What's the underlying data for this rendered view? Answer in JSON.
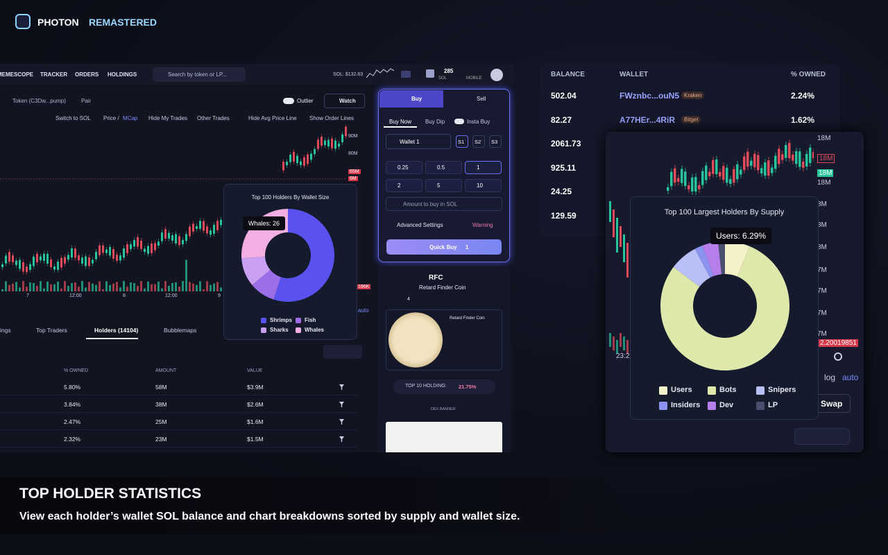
{
  "brand": {
    "name": "PHOTON",
    "accent": "REMASTERED"
  },
  "nav": {
    "items": [
      "MEMESCOPE",
      "TRACKER",
      "ORDERS",
      "HOLDINGS"
    ],
    "search": "Search by token or LP...",
    "sol_price": "SOL: $132.63",
    "balance": "285",
    "balance_unit": "SOL",
    "mobile": "MOBILE"
  },
  "token_bar": {
    "token": "Token (C3Dw...pump)",
    "pair": "Pair",
    "outlier": "Outlier",
    "watch": "Watch"
  },
  "toolbar": {
    "items": [
      "Switch to SOL",
      "Price /",
      "MCap",
      "Hide My Trades",
      "Other Trades",
      "Hide Avg Price Line",
      "Show Order Lines"
    ]
  },
  "price_chart": {
    "y_labels": [
      "90M",
      "80M",
      "65M",
      "6M"
    ],
    "low_label": "196K",
    "x_labels": [
      "7",
      "12:00",
      "8",
      "12:00",
      "9"
    ],
    "auto": "auto"
  },
  "chart_data": [
    {
      "type": "donut",
      "title": "Top 100 Holders By Wallet Size",
      "categories": [
        "Shrimps",
        "Fish",
        "Sharks",
        "Whales"
      ],
      "values": [
        55,
        9,
        10,
        26
      ],
      "value_labels": [
        null,
        null,
        null,
        "Whales: 26"
      ],
      "colors": [
        "#5a52ee",
        "#9c6ee8",
        "#c9a0f2",
        "#f3aee2"
      ]
    },
    {
      "type": "donut",
      "title": "Top 100 Largest Holders By Supply",
      "categories": [
        "Users",
        "Bots",
        "Snipers",
        "Insiders",
        "Dev",
        "LP"
      ],
      "values": [
        6.29,
        79,
        7,
        2,
        4,
        1.71
      ],
      "value_labels": [
        "Users: 6.29%",
        null,
        null,
        null,
        null,
        null
      ],
      "colors": [
        "#f4f2c8",
        "#dfe8ab",
        "#b9c0f5",
        "#8b93f0",
        "#b57ee8",
        "#4a4f6e"
      ]
    }
  ],
  "tabs": [
    "ings",
    "Top Traders",
    "Holders (14104)",
    "Bubblemaps"
  ],
  "holders_table": {
    "columns": [
      "% OWNED",
      "AMOUNT",
      "VALUE"
    ],
    "rows": [
      [
        "5.80%",
        "58M",
        "$3.9M"
      ],
      [
        "3.84%",
        "38M",
        "$2.6M"
      ],
      [
        "2.47%",
        "25M",
        "$1.6M"
      ],
      [
        "2.32%",
        "23M",
        "$1.5M"
      ]
    ]
  },
  "trade_panel": {
    "buy": "Buy",
    "sell": "Sell",
    "modes": [
      "Buy Now",
      "Buy Dip",
      "Insta Buy"
    ],
    "wallet": "Wallet 1",
    "presets": [
      "S1",
      "S2",
      "S3"
    ],
    "amounts": [
      "0.25",
      "0.5",
      "1",
      "2",
      "5",
      "10"
    ],
    "amount_placeholder": "Amount to buy in SOL",
    "advanced": "Advanced Settings",
    "warning": "Warning",
    "quick_buy": "Quick Buy",
    "quick_amount": "1"
  },
  "token_info": {
    "symbol": "RFC",
    "name": "Retard Finder Coin",
    "x_count": "4",
    "card_title": "Retard Finder Coin",
    "top10_label": "TOP 10 HOLDING:",
    "top10_value": "21.75%",
    "banner": "DEX BANNER"
  },
  "balance_table": {
    "columns": [
      "BALANCE",
      "WALLET",
      "% OWNED"
    ],
    "rows": [
      [
        "502.04",
        "FWznbc...ouN5",
        "Kraken",
        "2.24%"
      ],
      [
        "82.27",
        "A77HEr...4RiR",
        "Bitget",
        "1.62%"
      ],
      [
        "2061.73"
      ],
      [
        "925.11"
      ],
      [
        "24.25"
      ],
      [
        "129.59"
      ]
    ]
  },
  "supply_chart": {
    "y_labels": [
      "18M",
      "18M",
      "18M",
      "18M",
      "8M",
      "8M",
      "8M",
      "7M",
      "7M",
      "7M",
      "7M"
    ],
    "price_tag": "2.20019851",
    "x_label": "23:2",
    "log": "log",
    "auto": "auto",
    "swap": "Swap"
  },
  "footer": {
    "title": "TOP HOLDER STATISTICS",
    "description": "View each holder’s wallet SOL balance and chart breakdowns sorted by supply and wallet size."
  }
}
